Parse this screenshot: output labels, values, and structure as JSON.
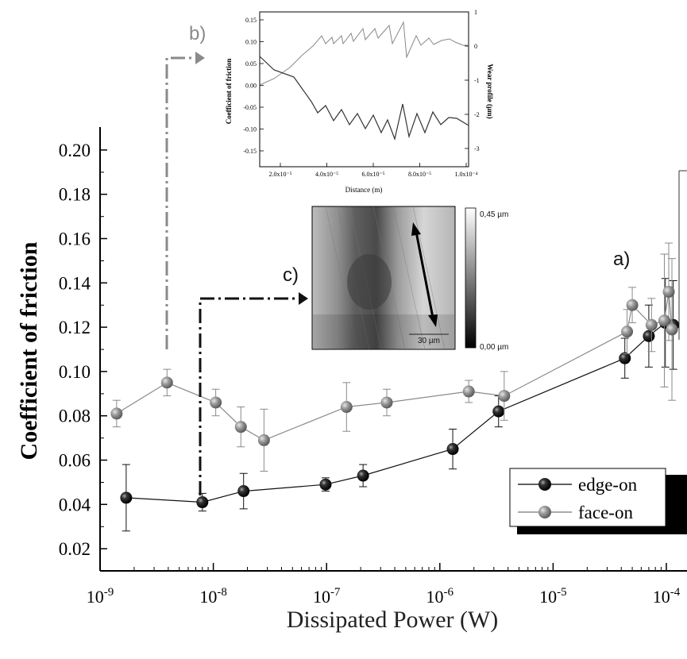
{
  "chart_data": {
    "type": "scatter",
    "xscale": "log",
    "xlim": [
      1e-09,
      0.00012
    ],
    "ylim": [
      0.01,
      0.21
    ],
    "xlabel": "Dissipated Power (W)",
    "ylabel": "Coefficient of friction",
    "x_ticks": [
      {
        "value": 1e-09,
        "mantissa": "10",
        "exp": "-9"
      },
      {
        "value": 1e-08,
        "mantissa": "10",
        "exp": "-8"
      },
      {
        "value": 1e-07,
        "mantissa": "10",
        "exp": "-7"
      },
      {
        "value": 1e-06,
        "mantissa": "10",
        "exp": "-6"
      },
      {
        "value": 1e-05,
        "mantissa": "10",
        "exp": "-5"
      },
      {
        "value": 0.0001,
        "mantissa": "10",
        "exp": "-4"
      }
    ],
    "y_ticks": [
      {
        "value": 0.02,
        "label": "0.02"
      },
      {
        "value": 0.04,
        "label": "0.04"
      },
      {
        "value": 0.06,
        "label": "0.06"
      },
      {
        "value": 0.08,
        "label": "0.08"
      },
      {
        "value": 0.1,
        "label": "0.10"
      },
      {
        "value": 0.12,
        "label": "0.12"
      },
      {
        "value": 0.14,
        "label": "0.14"
      },
      {
        "value": 0.16,
        "label": "0.16"
      },
      {
        "value": 0.18,
        "label": "0.18"
      },
      {
        "value": 0.2,
        "label": "0.20"
      }
    ],
    "legend_position": "bottom-right",
    "series": [
      {
        "name": "edge-on",
        "color": "#111111",
        "points": [
          {
            "x": 1.7e-09,
            "y": 0.043,
            "err": 0.015
          },
          {
            "x": 8e-09,
            "y": 0.041,
            "err": 0.004
          },
          {
            "x": 1.85e-08,
            "y": 0.046,
            "err": 0.008
          },
          {
            "x": 9.8e-08,
            "y": 0.049,
            "err": 0.003
          },
          {
            "x": 2.1e-07,
            "y": 0.053,
            "err": 0.005
          },
          {
            "x": 1.3e-06,
            "y": 0.065,
            "err": 0.009
          },
          {
            "x": 3.3e-06,
            "y": 0.082,
            "err": 0.007
          },
          {
            "x": 4.3e-05,
            "y": 0.106,
            "err": 0.009
          },
          {
            "x": 7e-05,
            "y": 0.116,
            "err": 0.014
          },
          {
            "x": 9.8e-05,
            "y": 0.122,
            "err": 0.02
          },
          {
            "x": 0.000115,
            "y": 0.121,
            "err": 0.02
          }
        ]
      },
      {
        "name": "face-on",
        "color": "#8a8a8a",
        "points": [
          {
            "x": 1.4e-09,
            "y": 0.081,
            "err": 0.006
          },
          {
            "x": 3.9e-09,
            "y": 0.095,
            "err": 0.006
          },
          {
            "x": 1.05e-08,
            "y": 0.086,
            "err": 0.006
          },
          {
            "x": 1.75e-08,
            "y": 0.075,
            "err": 0.009
          },
          {
            "x": 2.8e-08,
            "y": 0.069,
            "err": 0.014
          },
          {
            "x": 1.5e-07,
            "y": 0.084,
            "err": 0.011
          },
          {
            "x": 3.4e-07,
            "y": 0.086,
            "err": 0.006
          },
          {
            "x": 1.8e-06,
            "y": 0.091,
            "err": 0.005
          },
          {
            "x": 3.7e-06,
            "y": 0.089,
            "err": 0.011
          },
          {
            "x": 4.5e-05,
            "y": 0.118,
            "err": 0.01
          },
          {
            "x": 5e-05,
            "y": 0.13,
            "err": 0.008
          },
          {
            "x": 7.4e-05,
            "y": 0.121,
            "err": 0.012
          },
          {
            "x": 9.6e-05,
            "y": 0.123,
            "err": 0.03
          },
          {
            "x": 0.000105,
            "y": 0.136,
            "err": 0.022
          },
          {
            "x": 0.000112,
            "y": 0.119,
            "err": 0.032
          }
        ]
      }
    ],
    "annotations": {
      "a": "a)",
      "b": "b)",
      "c": "c)"
    },
    "inset_b": {
      "xlabel": "Distance (m)",
      "ylabel_left": "Coefficient of friction",
      "ylabel_right": "Wear profile (µm)",
      "x_ticks": [
        "2.0x10⁻⁵",
        "4.0x10⁻⁵",
        "6.0x10⁻⁵",
        "8.0x10⁻⁵",
        "1.0x10⁻⁴"
      ],
      "y_ticks_left": [
        "0.15",
        "0.10",
        "0.05",
        "0.00",
        "-0.05",
        "-0.10",
        "-0.15"
      ],
      "y_ticks_right": [
        "1",
        "0",
        "-1",
        "-2",
        "-3"
      ]
    },
    "inset_c": {
      "scale_top": "0,45 µm",
      "scale_bottom": "0,00 µm",
      "scalebar": "30 µm"
    }
  }
}
